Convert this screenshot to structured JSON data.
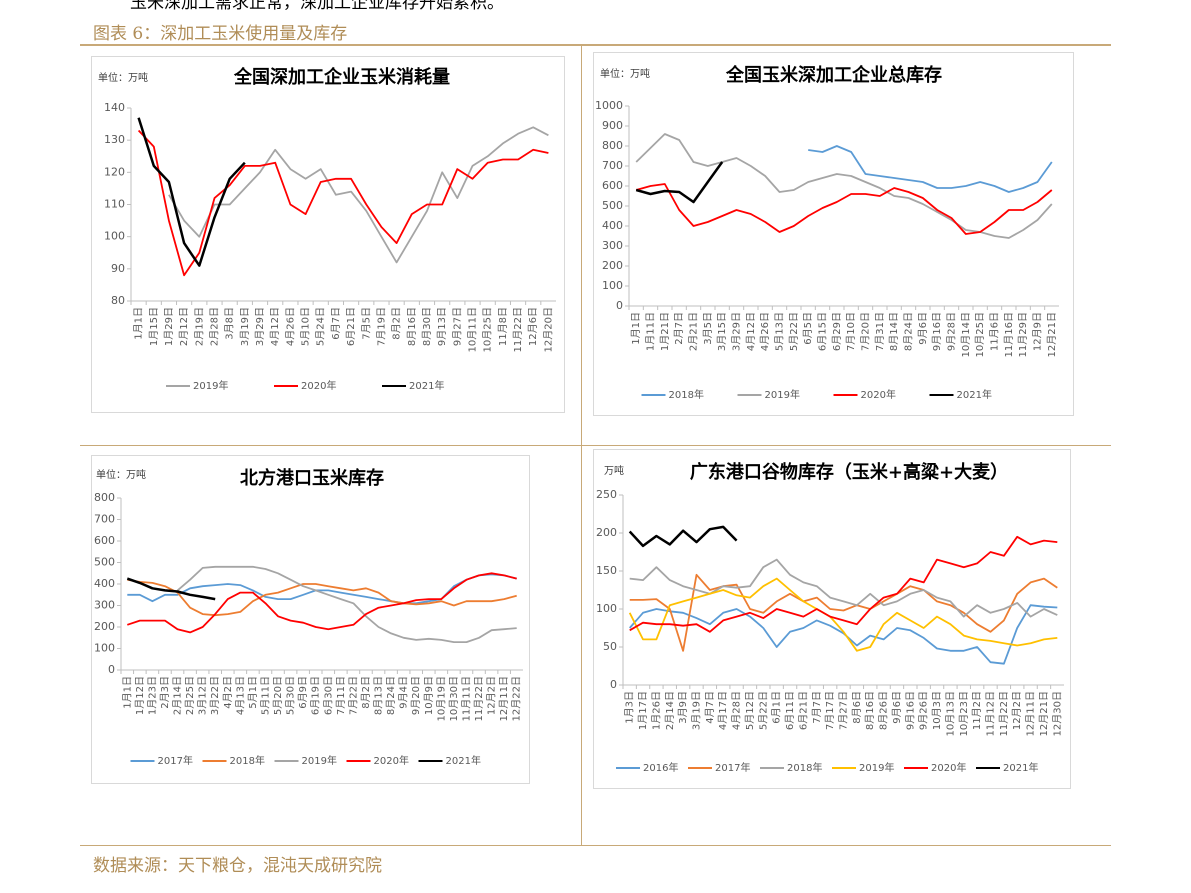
{
  "top_text": "玉米深加工需求正常，深加工企业库存开始累积。",
  "caption": "图表 6：深加工玉米使用量及库存",
  "source": "数据来源：天下粮仓，混沌天成研究院",
  "chart_data": [
    {
      "type": "line",
      "title": "全国深加工企业玉米消耗量",
      "unit": "单位：万吨",
      "categories": [
        "1月1日",
        "1月15日",
        "1月29日",
        "2月12日",
        "2月19日",
        "2月28日",
        "3月8日",
        "3月19日",
        "3月29日",
        "4月12日",
        "4月26日",
        "5月10日",
        "5月24日",
        "6月7日",
        "6月21日",
        "7月5日",
        "7月19日",
        "8月2日",
        "8月16日",
        "8月30日",
        "9月13日",
        "9月27日",
        "10月11日",
        "10月25日",
        "11月8日",
        "11月22日",
        "12月6日",
        "12月20日"
      ],
      "ylim": [
        80,
        140
      ],
      "yticks": [
        80,
        90,
        100,
        110,
        120,
        130,
        140
      ],
      "grid": false,
      "series": [
        {
          "name": "2019年",
          "color": "#a5a5a5",
          "values": [
            null,
            null,
            113,
            105,
            100,
            110,
            110,
            115,
            120,
            127,
            121,
            118,
            121,
            113,
            114,
            108,
            100,
            92,
            100,
            108,
            120,
            112,
            122,
            125,
            129,
            132,
            134,
            131.5
          ]
        },
        {
          "name": "2020年",
          "color": "#ff0000",
          "values": [
            133,
            128,
            105,
            88,
            95,
            112,
            116,
            122,
            122,
            123,
            110,
            107,
            117,
            118,
            118,
            110,
            103,
            98,
            107,
            110,
            110,
            121,
            118,
            123,
            124,
            124,
            127,
            126
          ]
        },
        {
          "name": "2021年",
          "color": "#000000",
          "values": [
            137,
            122,
            117,
            98,
            91,
            106,
            118,
            123,
            null,
            null,
            null,
            null,
            null,
            null,
            null,
            null,
            null,
            null,
            null,
            null,
            null,
            null,
            null,
            null,
            null,
            null,
            null,
            null
          ]
        }
      ]
    },
    {
      "type": "line",
      "title": "全国玉米深加工企业总库存",
      "unit": "单位：万吨",
      "categories": [
        "1月1日",
        "1月11日",
        "1月21日",
        "2月7日",
        "2月21日",
        "3月5日",
        "3月15日",
        "3月29日",
        "4月12日",
        "4月26日",
        "5月13日",
        "5月22日",
        "6月5日",
        "6月15日",
        "6月29日",
        "7月10日",
        "7月20日",
        "7月31日",
        "8月14日",
        "8月24日",
        "9月6日",
        "9月16日",
        "9月28日",
        "10月14日",
        "10月25日",
        "11月6日",
        "11月16日",
        "11月29日",
        "12月9日",
        "12月21日"
      ],
      "ylim": [
        0,
        1000
      ],
      "yticks": [
        0,
        100,
        200,
        300,
        400,
        500,
        600,
        700,
        800,
        900,
        1000
      ],
      "grid": false,
      "series": [
        {
          "name": "2018年",
          "color": "#5b9bd5",
          "values": [
            null,
            null,
            null,
            null,
            null,
            null,
            null,
            null,
            null,
            null,
            null,
            null,
            780,
            770,
            800,
            770,
            660,
            650,
            640,
            630,
            620,
            590,
            590,
            600,
            620,
            600,
            570,
            590,
            620,
            720
          ]
        },
        {
          "name": "2019年",
          "color": "#a5a5a5",
          "values": [
            720,
            790,
            860,
            830,
            720,
            700,
            720,
            740,
            700,
            650,
            570,
            580,
            620,
            640,
            660,
            650,
            620,
            590,
            550,
            540,
            510,
            470,
            430,
            380,
            370,
            350,
            340,
            380,
            430,
            510
          ]
        },
        {
          "name": "2020年",
          "color": "#ff0000",
          "values": [
            580,
            600,
            610,
            480,
            400,
            420,
            450,
            480,
            460,
            420,
            370,
            400,
            450,
            490,
            520,
            560,
            560,
            550,
            590,
            570,
            540,
            480,
            440,
            360,
            370,
            420,
            480,
            480,
            520,
            580
          ]
        },
        {
          "name": "2021年",
          "color": "#000000",
          "values": [
            580,
            560,
            575,
            570,
            520,
            620,
            720,
            null,
            null,
            null,
            null,
            null,
            null,
            null,
            null,
            null,
            null,
            null,
            null,
            null,
            null,
            null,
            null,
            null,
            null,
            null,
            null,
            null,
            null,
            null
          ]
        }
      ]
    },
    {
      "type": "line",
      "title": "北方港口玉米库存",
      "unit": "单位：万吨",
      "categories": [
        "1月1日",
        "1月12日",
        "1月23日",
        "2月3日",
        "2月14日",
        "2月25日",
        "3月12日",
        "3月22日",
        "4月2日",
        "4月13日",
        "5月1日",
        "5月11日",
        "5月20日",
        "5月30日",
        "6月9日",
        "6月19日",
        "6月30日",
        "7月11日",
        "7月22日",
        "8月2日",
        "8月13日",
        "8月24日",
        "9月4日",
        "9月20日",
        "10月9日",
        "10月19日",
        "10月30日",
        "11月11日",
        "11月22日",
        "12月2日",
        "12月11日",
        "12月22日"
      ],
      "ylim": [
        0,
        800
      ],
      "yticks": [
        0,
        100,
        200,
        300,
        400,
        500,
        600,
        700,
        800
      ],
      "grid": false,
      "series": [
        {
          "name": "2017年",
          "color": "#5b9bd5",
          "values": [
            350,
            350,
            320,
            350,
            350,
            380,
            390,
            395,
            400,
            395,
            370,
            340,
            330,
            330,
            350,
            370,
            370,
            360,
            350,
            340,
            330,
            320,
            310,
            310,
            320,
            330,
            390,
            420,
            440,
            445,
            440,
            425
          ]
        },
        {
          "name": "2018年",
          "color": "#ed7d31",
          "values": [
            420,
            410,
            405,
            390,
            360,
            290,
            260,
            255,
            260,
            270,
            320,
            350,
            360,
            380,
            400,
            400,
            390,
            380,
            370,
            380,
            360,
            320,
            310,
            305,
            310,
            320,
            300,
            320,
            320,
            320,
            330,
            345
          ]
        },
        {
          "name": "2019年",
          "color": "#a5a5a5",
          "values": [
            null,
            null,
            null,
            null,
            370,
            420,
            475,
            480,
            480,
            480,
            480,
            470,
            450,
            420,
            390,
            370,
            350,
            330,
            310,
            250,
            200,
            170,
            150,
            140,
            145,
            140,
            130,
            130,
            150,
            185,
            190,
            195
          ]
        },
        {
          "name": "2020年",
          "color": "#ff0000",
          "values": [
            210,
            230,
            230,
            230,
            190,
            175,
            200,
            260,
            330,
            360,
            360,
            310,
            250,
            230,
            220,
            200,
            190,
            200,
            210,
            260,
            290,
            300,
            310,
            325,
            330,
            330,
            380,
            420,
            440,
            450,
            440,
            425
          ]
        },
        {
          "name": "2021年",
          "color": "#000000",
          "values": [
            425,
            405,
            380,
            370,
            365,
            350,
            340,
            330,
            null,
            null,
            null,
            null,
            null,
            null,
            null,
            null,
            null,
            null,
            null,
            null,
            null,
            null,
            null,
            null,
            null,
            null,
            null,
            null,
            null,
            null,
            null,
            null
          ]
        }
      ]
    },
    {
      "type": "line",
      "title": "广东港口谷物库存（玉米+高粱+大麦）",
      "unit": "万吨",
      "categories": [
        "1月3日",
        "1月17日",
        "1月26日",
        "2月14日",
        "3月9日",
        "3月19日",
        "4月7日",
        "4月17日",
        "4月28日",
        "5月12日",
        "5月22日",
        "6月1日",
        "6月11日",
        "6月21日",
        "7月7日",
        "7月17日",
        "7月27日",
        "8月6日",
        "8月16日",
        "8月26日",
        "9月6日",
        "9月16日",
        "9月26日",
        "10月3日",
        "10月13日",
        "10月23日",
        "11月2日",
        "11月12日",
        "11月22日",
        "12月2日",
        "12月11日",
        "12月21日",
        "12月30日"
      ],
      "ylim": [
        0,
        250
      ],
      "yticks": [
        0,
        50,
        100,
        150,
        200,
        250
      ],
      "grid": false,
      "series": [
        {
          "name": "2016年",
          "color": "#5b9bd5",
          "values": [
            75,
            95,
            100,
            97,
            95,
            88,
            80,
            95,
            100,
            90,
            75,
            50,
            70,
            75,
            85,
            78,
            68,
            52,
            65,
            60,
            75,
            72,
            62,
            48,
            45,
            45,
            50,
            30,
            28,
            75,
            105,
            103,
            102
          ]
        },
        {
          "name": "2017年",
          "color": "#ed7d31",
          "values": [
            112,
            112,
            113,
            100,
            45,
            145,
            125,
            130,
            132,
            100,
            95,
            110,
            120,
            110,
            115,
            100,
            98,
            105,
            100,
            110,
            120,
            130,
            125,
            110,
            105,
            95,
            80,
            70,
            85,
            120,
            135,
            140,
            128
          ]
        },
        {
          "name": "2018年",
          "color": "#a5a5a5",
          "values": [
            140,
            138,
            155,
            138,
            130,
            125,
            120,
            130,
            128,
            130,
            155,
            165,
            145,
            135,
            130,
            115,
            110,
            105,
            120,
            105,
            110,
            120,
            125,
            115,
            110,
            90,
            105,
            95,
            100,
            108,
            90,
            100,
            92
          ]
        },
        {
          "name": "2019年",
          "color": "#ffc000",
          "values": [
            95,
            60,
            60,
            105,
            110,
            115,
            120,
            125,
            118,
            115,
            130,
            140,
            125,
            110,
            100,
            90,
            70,
            45,
            50,
            80,
            95,
            85,
            75,
            90,
            80,
            65,
            60,
            58,
            55,
            52,
            55,
            60,
            62
          ]
        },
        {
          "name": "2020年",
          "color": "#ff0000",
          "values": [
            72,
            82,
            80,
            80,
            78,
            80,
            70,
            85,
            90,
            95,
            88,
            100,
            95,
            90,
            100,
            90,
            85,
            80,
            100,
            115,
            120,
            140,
            135,
            165,
            160,
            155,
            160,
            175,
            170,
            195,
            185,
            190,
            188
          ]
        },
        {
          "name": "2021年",
          "color": "#000000",
          "values": [
            202,
            183,
            196,
            185,
            203,
            188,
            205,
            208,
            190,
            null,
            null,
            null,
            null,
            null,
            null,
            null,
            null,
            null,
            null,
            null,
            null,
            null,
            null,
            null,
            null,
            null,
            null,
            null,
            null,
            null,
            null,
            null,
            null
          ]
        }
      ]
    }
  ]
}
